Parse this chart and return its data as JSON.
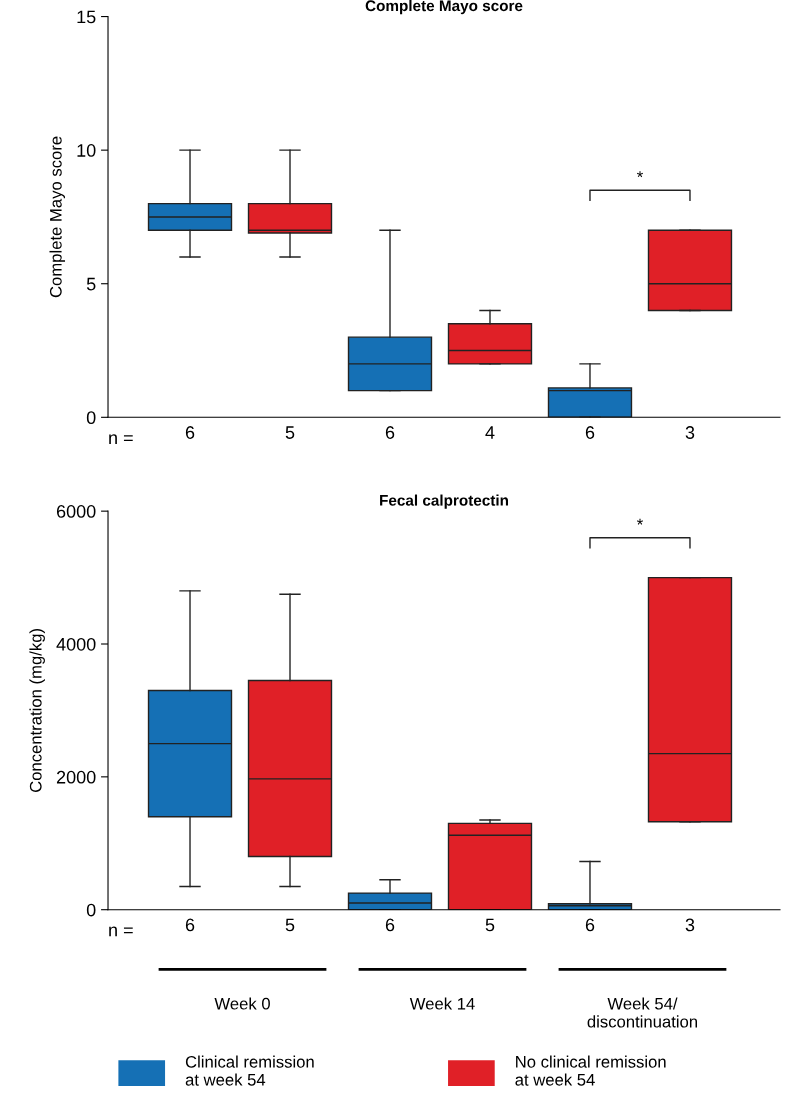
{
  "chart_data": [
    {
      "type": "box",
      "title": "Complete Mayo score",
      "ylabel": "Complete Mayo score",
      "categories": [
        "6",
        "5",
        "6",
        "4",
        "6",
        "3"
      ],
      "ylim": [
        0,
        15
      ],
      "yticks": [
        0,
        5,
        10,
        15
      ],
      "grid": false,
      "legend": false,
      "annotations": [
        "*",
        "n ="
      ],
      "series": [
        {
          "color": "#1570b5",
          "boxes": [
            {
              "low": 6,
              "q1": 7,
              "median": 7.5,
              "q3": 8,
              "high": 10
            },
            null,
            {
              "low": 1,
              "q1": 1,
              "median": 2,
              "q3": 3,
              "high": 7
            },
            null,
            {
              "low": 0,
              "q1": 0,
              "median": 1,
              "q3": 1.1,
              "high": 2
            },
            null
          ]
        },
        {
          "color": "#e02027",
          "boxes": [
            null,
            {
              "low": 6,
              "q1": 6.9,
              "median": 7,
              "q3": 8,
              "high": 10
            },
            null,
            {
              "low": 2,
              "q1": 2,
              "median": 2.5,
              "q3": 3.5,
              "high": 4
            },
            null,
            {
              "low": 4,
              "q1": 4,
              "median": 5,
              "q3": 7,
              "high": 7
            }
          ]
        }
      ]
    },
    {
      "type": "box",
      "title": "Fecal calprotectin",
      "ylabel": "Concentration (mg/kg)",
      "categories": [
        "6",
        "5",
        "6",
        "5",
        "6",
        "3"
      ],
      "ylim": [
        0,
        6000
      ],
      "yticks": [
        0,
        2000,
        4000,
        6000
      ],
      "grid": false,
      "legend": "bottom",
      "annotations": [
        "*",
        "n =",
        "Week 0",
        "Week 14",
        "Week 54/\ndiscontinuation"
      ],
      "series": [
        {
          "name": "Clinical remission\nat week 54",
          "color": "#1570b5",
          "boxes": [
            {
              "low": 350,
              "q1": 1400,
              "median": 2500,
              "q3": 3300,
              "high": 4800
            },
            null,
            {
              "low": 0,
              "q1": 0,
              "median": 100,
              "q3": 250,
              "high": 450
            },
            null,
            {
              "low": 0,
              "q1": 0,
              "median": 60,
              "q3": 90,
              "high": 725
            },
            null
          ]
        },
        {
          "name": "No clinical remission\nat week 54",
          "color": "#e02027",
          "boxes": [
            null,
            {
              "low": 350,
              "q1": 800,
              "median": 1970,
              "q3": 3450,
              "high": 4750
            },
            null,
            {
              "low": 0,
              "q1": 0,
              "median": 1120,
              "q3": 1300,
              "high": 1350
            },
            null,
            {
              "low": 1325,
              "q1": 1325,
              "median": 2350,
              "q3": 5000,
              "high": 5000
            }
          ]
        }
      ]
    }
  ]
}
